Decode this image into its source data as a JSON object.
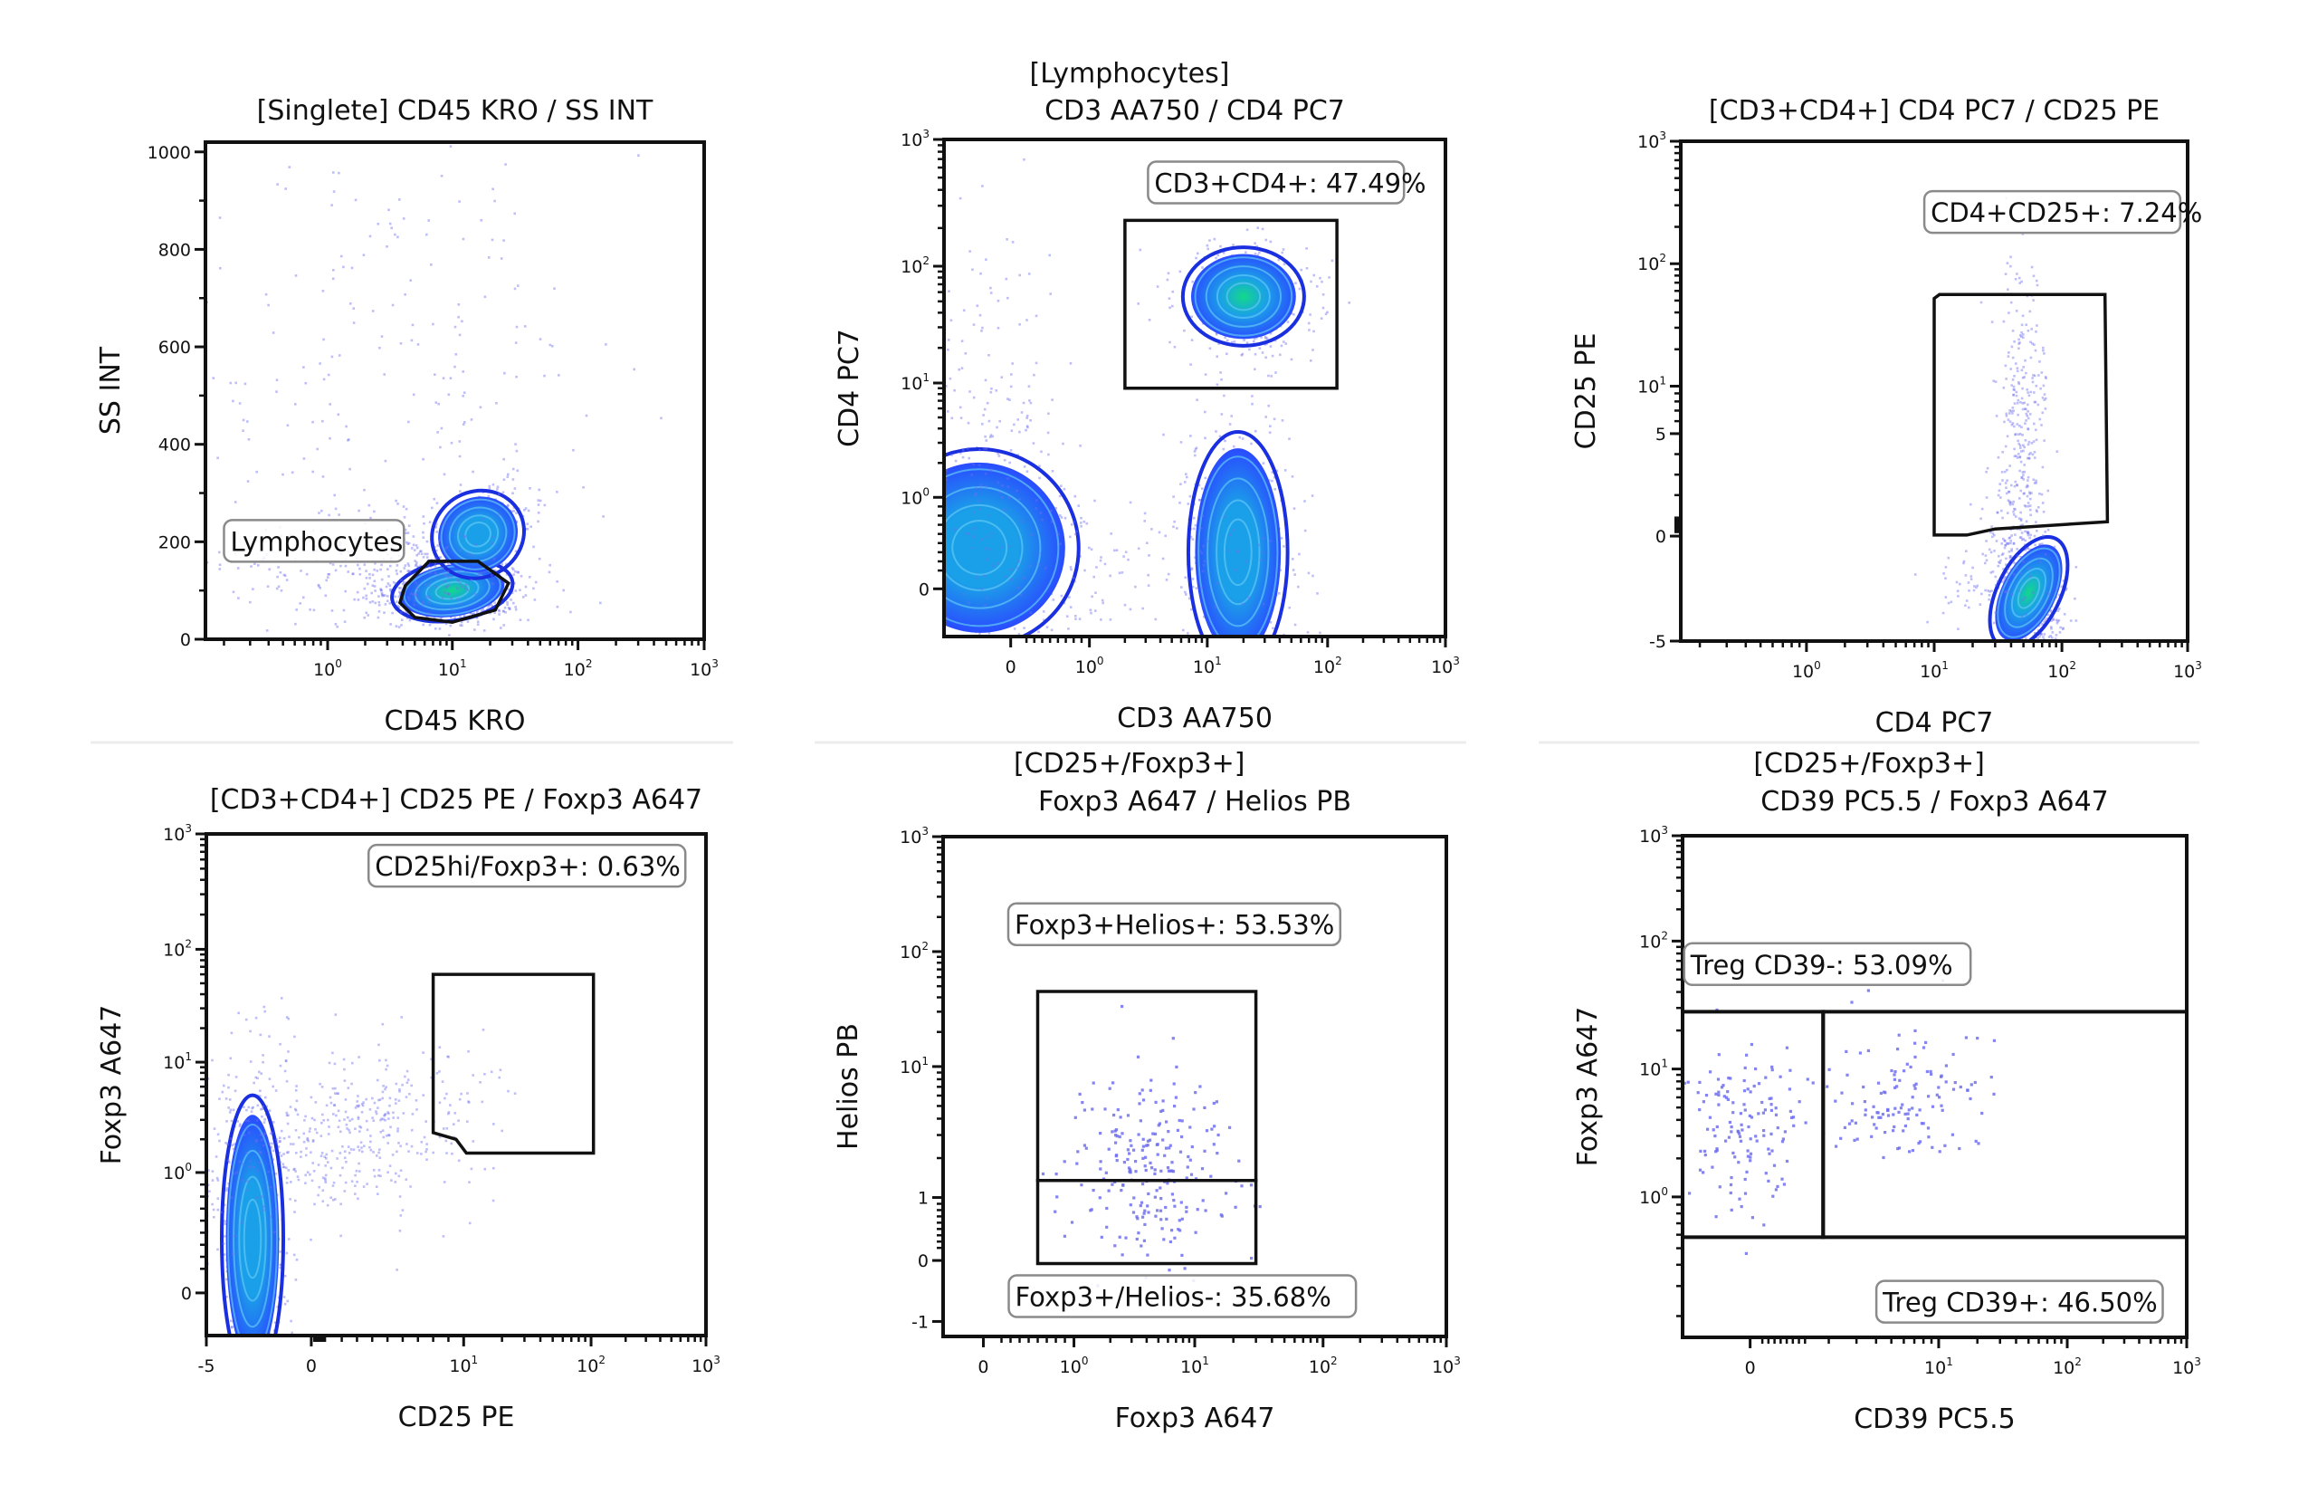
{
  "figure": {
    "description": "Flow cytometry gating strategy (6 panels)",
    "colors": {
      "dot": "#6f6ff0",
      "contour": "#1a2fe0",
      "density_low": "#2a4cff",
      "density_mid": "#1aa0e8",
      "density_high": "#12d98a",
      "gate": "#111111",
      "label_border": "#8a8a8a"
    }
  },
  "chart_data": [
    {
      "id": "p1",
      "type": "scatter",
      "subtype": "density-contour",
      "title_lines": [
        "[Singlete] CD45 KRO / SS INT"
      ],
      "xlabel": "CD45 KRO",
      "ylabel": "SS INT",
      "xscale": "log",
      "yscale": "linear",
      "xlim": [
        0.15,
        1000
      ],
      "ylim": [
        0,
        1020
      ],
      "xticks": [
        {
          "v": 1,
          "base": "10",
          "exp": "0"
        },
        {
          "v": 10,
          "base": "10",
          "exp": "1"
        },
        {
          "v": 100,
          "base": "10",
          "exp": "2"
        },
        {
          "v": 1000,
          "base": "10",
          "exp": "3"
        }
      ],
      "yticks": [
        {
          "v": 0,
          "label": "0"
        },
        {
          "v": 200,
          "label": "200"
        },
        {
          "v": 400,
          "label": "400"
        },
        {
          "v": 600,
          "label": "600"
        },
        {
          "v": 800,
          "label": "800"
        },
        {
          "v": 1000,
          "label": "1000"
        }
      ],
      "populations": [
        {
          "name": "lymphocytes",
          "cx": 10,
          "cy": 100,
          "sx": 0.22,
          "sy": 28,
          "n": 700,
          "peak": "high",
          "tilt": -0.15
        },
        {
          "name": "monocytes",
          "cx": 16,
          "cy": 215,
          "sx": 0.17,
          "sy": 40,
          "n": 420,
          "peak": "mid",
          "tilt": -0.55
        },
        {
          "name": "debris",
          "cx": 2.5,
          "cy": 150,
          "sx": 0.45,
          "sy": 45,
          "n": 260,
          "peak": "none",
          "tilt": 0
        },
        {
          "name": "scatter",
          "cx": 3,
          "cy": 550,
          "sx": 0.7,
          "sy": 280,
          "n": 260,
          "peak": "none",
          "tilt": 0
        }
      ],
      "gates": [
        {
          "name": "lymphocytes-gate",
          "shape": "polygon",
          "points": [
            [
              4.2,
              110
            ],
            [
              6.5,
              160
            ],
            [
              16,
              160
            ],
            [
              28,
              115
            ],
            [
              22,
              60
            ],
            [
              10,
              35
            ],
            [
              5,
              45
            ],
            [
              3.8,
              75
            ]
          ]
        }
      ],
      "annotations": [
        {
          "text": "Lymphocytes",
          "x": 0.2,
          "y": 200,
          "anchor": "left"
        }
      ]
    },
    {
      "id": "p2",
      "type": "scatter",
      "subtype": "density-contour",
      "title_lines": [
        "[Lymphocytes]",
        "CD3 AA750 / CD4 PC7"
      ],
      "xlabel": "CD3 AA750",
      "ylabel": "CD4 PC7",
      "xscale": "biex",
      "yscale": "biex",
      "xlim": [
        -1.5,
        1000
      ],
      "ylim": [
        -1.5,
        1000
      ],
      "xticks": [
        {
          "v": 0,
          "label": "0"
        },
        {
          "v": 1,
          "base": "10",
          "exp": "0"
        },
        {
          "v": 10,
          "base": "10",
          "exp": "1"
        },
        {
          "v": 100,
          "base": "10",
          "exp": "2"
        },
        {
          "v": 1000,
          "base": "10",
          "exp": "3"
        }
      ],
      "yticks": [
        {
          "v": 0,
          "label": "0"
        },
        {
          "v": 1,
          "base": "10",
          "exp": "0"
        },
        {
          "v": 10,
          "base": "10",
          "exp": "1"
        },
        {
          "v": 100,
          "base": "10",
          "exp": "2"
        },
        {
          "v": 1000,
          "base": "10",
          "exp": "3"
        }
      ],
      "populations": [
        {
          "name": "cd3-neg",
          "cx": -0.6,
          "cy": 0.45,
          "sx": 0.09,
          "sy": 0.09,
          "n": 420,
          "peak": "mid",
          "tilt": 0.4,
          "space": "frac"
        },
        {
          "name": "cd3-pos-cd4-neg",
          "cx": 18,
          "cy": 0.4,
          "sx": 0.045,
          "sy": 0.11,
          "n": 520,
          "peak": "mid",
          "tilt": 0,
          "space": "frac"
        },
        {
          "name": "cd3-pos-cd4-pos",
          "cx": 20,
          "cy": 55,
          "sx": 0.055,
          "sy": 0.045,
          "n": 480,
          "peak": "high",
          "tilt": 0,
          "space": "frac"
        },
        {
          "name": "cd3-neg-cd4-dim",
          "cx": -0.4,
          "cy": 4,
          "sx": 0.06,
          "sy": 0.14,
          "n": 200,
          "peak": "none",
          "tilt": 0,
          "space": "frac"
        },
        {
          "name": "bridge",
          "cx": 1.5,
          "cy": 0.4,
          "sx": 0.16,
          "sy": 0.05,
          "n": 120,
          "peak": "none",
          "tilt": 0,
          "space": "frac"
        }
      ],
      "gates": [
        {
          "name": "cd3-cd4-gate",
          "shape": "polygon",
          "points": [
            [
              2,
              9
            ],
            [
              120,
              9
            ],
            [
              120,
              230
            ],
            [
              2,
              230
            ]
          ]
        }
      ],
      "annotations": [
        {
          "text": "CD3+CD4+: 47.49%",
          "x": 33,
          "y": 450,
          "anchor": "center"
        }
      ]
    },
    {
      "id": "p3",
      "type": "scatter",
      "subtype": "density-contour",
      "title_lines": [
        "[CD3+CD4+] CD4 PC7 / CD25 PE"
      ],
      "xlabel": "CD4 PC7",
      "ylabel": "CD25 PE",
      "xscale": "log",
      "yscale": "biex",
      "xlim": [
        0.15,
        1000
      ],
      "ylim": [
        -5,
        1000
      ],
      "xticks": [
        {
          "v": 1,
          "base": "10",
          "exp": "0"
        },
        {
          "v": 10,
          "base": "10",
          "exp": "1"
        },
        {
          "v": 100,
          "base": "10",
          "exp": "2"
        },
        {
          "v": 1000,
          "base": "10",
          "exp": "3"
        }
      ],
      "yticks": [
        {
          "v": -5,
          "label": "-5"
        },
        {
          "v": 0,
          "label": "0"
        },
        {
          "v": 5,
          "label": "5"
        },
        {
          "v": 10,
          "base": "10",
          "exp": "1"
        },
        {
          "v": 100,
          "base": "10",
          "exp": "2"
        },
        {
          "v": 1000,
          "base": "10",
          "exp": "3"
        }
      ],
      "populations": [
        {
          "name": "cd25-neg",
          "cx": 55,
          "cy": -2.7,
          "sx": 0.028,
          "sy": 0.055,
          "n": 620,
          "peak": "high",
          "tilt": 0.5,
          "space": "frac"
        },
        {
          "name": "cd25-pos-stream",
          "cx": 48,
          "cy": 6,
          "sx": 0.018,
          "sy": 0.13,
          "n": 330,
          "peak": "none",
          "tilt": 0,
          "space": "frac"
        },
        {
          "name": "cd25-left-spill",
          "cx": 20,
          "cy": -2.2,
          "sx": 0.04,
          "sy": 0.03,
          "n": 60,
          "peak": "none",
          "tilt": 0,
          "space": "frac"
        }
      ],
      "gates": [
        {
          "name": "cd4-cd25-gate",
          "shape": "polygon",
          "points": [
            [
              10,
              0.05
            ],
            [
              18,
              0.05
            ],
            [
              30,
              0.35
            ],
            [
              230,
              0.7
            ],
            [
              220,
              56
            ],
            [
              11,
              56
            ],
            [
              10,
              52
            ]
          ]
        }
      ],
      "annotations": [
        {
          "text": "CD4+CD25+: 7.24%",
          "x": 75,
          "y": 260,
          "anchor": "center"
        }
      ]
    },
    {
      "id": "p4",
      "type": "scatter",
      "subtype": "density-contour",
      "title_lines": [
        "[CD3+CD4+] CD25 PE / Foxp3 A647"
      ],
      "xlabel": "CD25 PE",
      "ylabel": "Foxp3 A647",
      "xscale": "biex",
      "yscale": "biex",
      "xlim": [
        -5,
        1000
      ],
      "ylim": [
        -0.4,
        1000
      ],
      "xticks": [
        {
          "v": -5,
          "label": "-5"
        },
        {
          "v": 0,
          "label": "0"
        },
        {
          "v": 10,
          "base": "10",
          "exp": "1"
        },
        {
          "v": 100,
          "base": "10",
          "exp": "2"
        },
        {
          "v": 1000,
          "base": "10",
          "exp": "3"
        }
      ],
      "yticks": [
        {
          "v": 0,
          "label": "0"
        },
        {
          "v": 1,
          "base": "10",
          "exp": "0"
        },
        {
          "v": 10,
          "base": "10",
          "exp": "1"
        },
        {
          "v": 100,
          "base": "10",
          "exp": "2"
        },
        {
          "v": 1000,
          "base": "10",
          "exp": "3"
        }
      ],
      "populations": [
        {
          "name": "foxp3-neg",
          "cx": -2.8,
          "cy": 0.45,
          "sx": 0.028,
          "sy": 0.13,
          "n": 700,
          "peak": "mid",
          "tilt": 0,
          "space": "frac"
        },
        {
          "name": "activated-stream",
          "cx": 2,
          "cy": 2.2,
          "sx": 0.12,
          "sy": 0.07,
          "n": 520,
          "peak": "none",
          "tilt": -0.35,
          "space": "frac"
        }
      ],
      "gates": [
        {
          "name": "cd25hi-foxp3-gate",
          "shape": "polygon",
          "points": [
            [
              8,
              2.3
            ],
            [
              9.5,
              2.0
            ],
            [
              10.5,
              1.5
            ],
            [
              105,
              1.5
            ],
            [
              105,
              60
            ],
            [
              8,
              60
            ]
          ]
        }
      ],
      "annotations": [
        {
          "text": "CD25hi/Foxp3+: 0.63%",
          "x": 28,
          "y": 520,
          "anchor": "center"
        }
      ]
    },
    {
      "id": "p5",
      "type": "scatter",
      "title_lines": [
        "[CD25+/Foxp3+]",
        "Foxp3 A647 / Helios PB"
      ],
      "xlabel": "Foxp3 A647",
      "ylabel": "Helios PB",
      "xscale": "biex",
      "yscale": "biex",
      "xlim": [
        -0.5,
        1000
      ],
      "ylim": [
        -1.3,
        1000
      ],
      "xticks": [
        {
          "v": 0,
          "label": "0"
        },
        {
          "v": 1,
          "base": "10",
          "exp": "0"
        },
        {
          "v": 10,
          "base": "10",
          "exp": "1"
        },
        {
          "v": 100,
          "base": "10",
          "exp": "2"
        },
        {
          "v": 1000,
          "base": "10",
          "exp": "3"
        }
      ],
      "yticks": [
        {
          "v": -1,
          "label": "-1"
        },
        {
          "v": 0,
          "label": "0"
        },
        {
          "v": 1,
          "label": "1"
        },
        {
          "v": 10,
          "base": "10",
          "exp": "1"
        },
        {
          "v": 100,
          "base": "10",
          "exp": "2"
        },
        {
          "v": 1000,
          "base": "10",
          "exp": "3"
        }
      ],
      "populations": [
        {
          "name": "treg-events",
          "cx": 4,
          "cy": 1.6,
          "sx": 0.06,
          "sy": 0.075,
          "n": 230,
          "peak": "dots",
          "tilt": 0,
          "space": "frac"
        }
      ],
      "gates": [
        {
          "name": "foxp3-helios-pos-gate",
          "shape": "polygon",
          "points": [
            [
              0.6,
              1.35
            ],
            [
              30,
              1.35
            ],
            [
              30,
              45
            ],
            [
              0.6,
              45
            ]
          ]
        },
        {
          "name": "foxp3-helios-neg-gate",
          "shape": "polygon",
          "points": [
            [
              0.6,
              -0.05
            ],
            [
              30,
              -0.05
            ],
            [
              30,
              1.35
            ],
            [
              0.6,
              1.35
            ]
          ]
        }
      ],
      "annotations": [
        {
          "text": "Foxp3+Helios+: 53.53%",
          "x": 6,
          "y": 170,
          "anchor": "center"
        },
        {
          "text": "Foxp3+/Helios-: 35.68%",
          "x": 7,
          "y": -0.6,
          "anchor": "center"
        }
      ]
    },
    {
      "id": "p6",
      "type": "scatter",
      "title_lines": [
        "[CD25+/Foxp3+]",
        "CD39 PC5.5 / Foxp3 A647"
      ],
      "xlabel": "CD39 PC5.5",
      "ylabel": "Foxp3 A647",
      "xscale": "biex",
      "yscale": "log",
      "xlim": [
        -1.5,
        1000
      ],
      "ylim": [
        0.15,
        1000
      ],
      "xticks": [
        {
          "v": 0,
          "label": "0"
        },
        {
          "v": 10,
          "base": "10",
          "exp": "1"
        },
        {
          "v": 100,
          "base": "10",
          "exp": "2"
        },
        {
          "v": 1000,
          "base": "10",
          "exp": "3"
        }
      ],
      "yticks": [
        {
          "v": 1,
          "base": "10",
          "exp": "0"
        },
        {
          "v": 10,
          "base": "10",
          "exp": "1"
        },
        {
          "v": 100,
          "base": "10",
          "exp": "2"
        },
        {
          "v": 1000,
          "base": "10",
          "exp": "3"
        }
      ],
      "populations": [
        {
          "name": "cd39-neg",
          "cx": -0.2,
          "cy": 3.2,
          "sx": 0.05,
          "sy": 0.065,
          "n": 140,
          "peak": "dots",
          "tilt": 0,
          "space": "frac"
        },
        {
          "name": "cd39-pos",
          "cx": 5.5,
          "cy": 6,
          "sx": 0.07,
          "sy": 0.055,
          "n": 130,
          "peak": "dots",
          "tilt": 0,
          "space": "frac"
        }
      ],
      "gates": [
        {
          "name": "treg-cd39-neg-gate",
          "shape": "polygon",
          "points": [
            [
              -1.5,
              0.58
            ],
            [
              1.6,
              0.58
            ],
            [
              1.6,
              28
            ],
            [
              -1.5,
              28
            ]
          ]
        },
        {
          "name": "treg-cd39-pos-gate",
          "shape": "polygon",
          "points": [
            [
              1.6,
              0.58
            ],
            [
              1000,
              0.58
            ],
            [
              1000,
              28
            ],
            [
              1.6,
              28
            ]
          ]
        }
      ],
      "annotations": [
        {
          "text": "Treg CD39-: 53.09%",
          "x": -1.45,
          "y": 65,
          "anchor": "left"
        },
        {
          "text": "Treg CD39+: 46.50%",
          "x": 38,
          "y": 0.24,
          "anchor": "center"
        }
      ]
    }
  ]
}
